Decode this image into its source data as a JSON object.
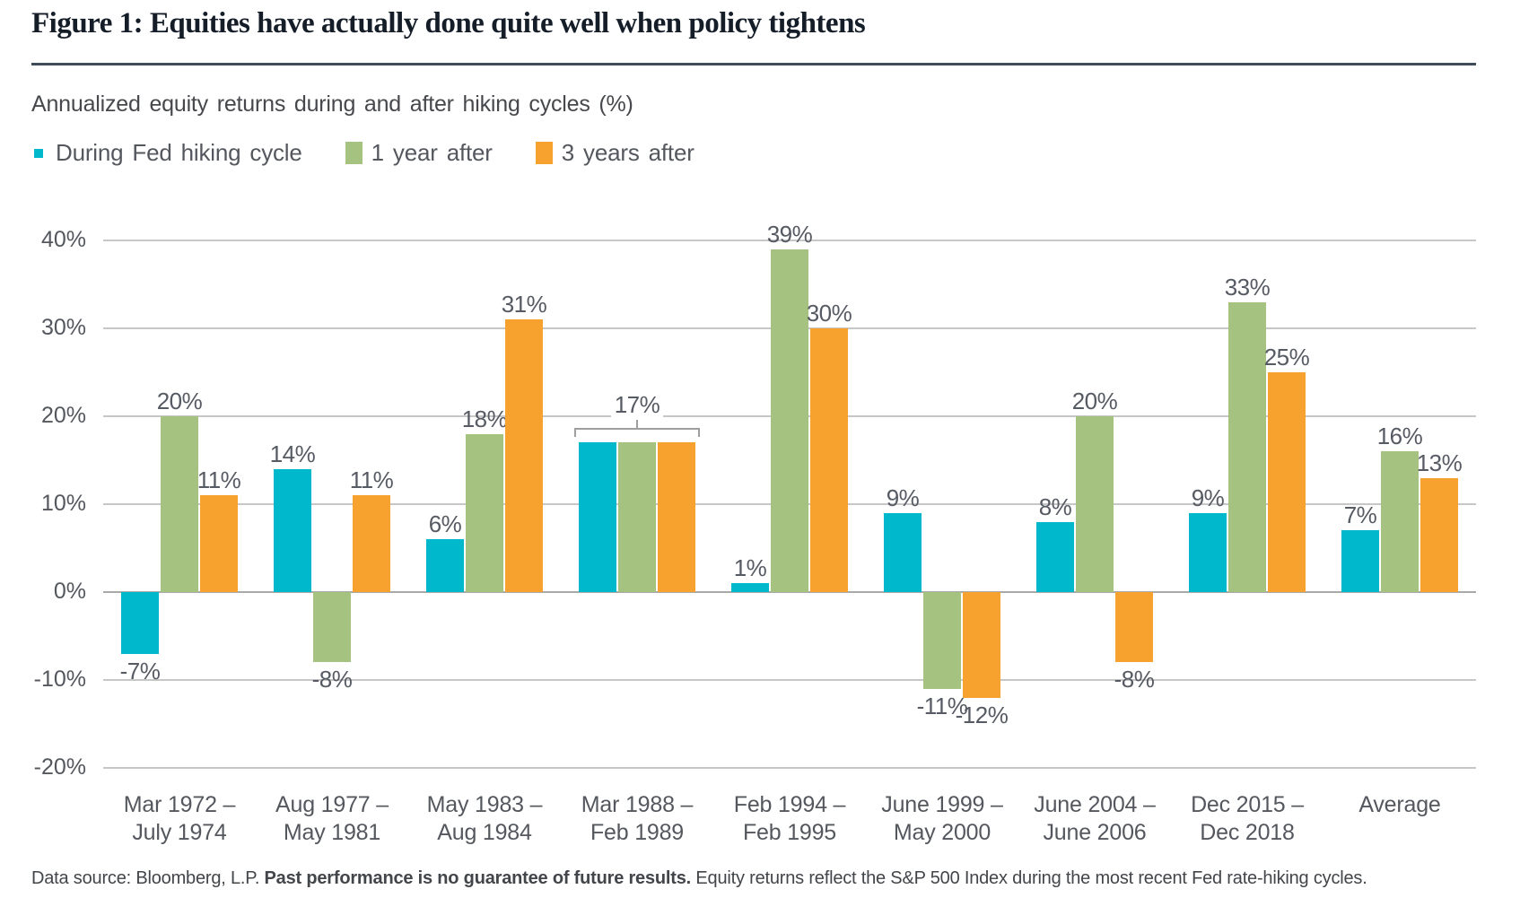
{
  "header": {
    "title": "Figure 1: Equities have actually done quite well when policy tightens",
    "subtitle": "Annualized equity returns during and after hiking cycles (%)"
  },
  "legend": [
    {
      "label": "During Fed hiking cycle",
      "color": "#00b8cc",
      "marker": "small-square"
    },
    {
      "label": "1 year after",
      "color": "#a6c280",
      "marker": "square"
    },
    {
      "label": "3 years after",
      "color": "#f7a12f",
      "marker": "square"
    }
  ],
  "footer": {
    "prefix": "Data source: Bloomberg, L.P. ",
    "bold": "Past performance is no guarantee of future results.",
    "suffix": " Equity returns reflect the S&P 500 Index during the most recent Fed rate-hiking cycles."
  },
  "chart_data": {
    "type": "bar",
    "title": "Annualized equity returns during and after hiking cycles (%)",
    "categories": [
      [
        "Mar 1972 –",
        "July 1974"
      ],
      [
        "Aug 1977 –",
        "May 1981"
      ],
      [
        "May 1983 –",
        "Aug 1984"
      ],
      [
        "Mar 1988 –",
        "Feb 1989"
      ],
      [
        "Feb 1994 –",
        "Feb 1995"
      ],
      [
        "June 1999 –",
        "May 2000"
      ],
      [
        "June 2004 –",
        "June 2006"
      ],
      [
        "Dec 2015 –",
        "Dec 2018"
      ],
      [
        "Average"
      ]
    ],
    "series": [
      {
        "name": "During Fed hiking cycle",
        "color": "#00b8cc",
        "values": [
          -7,
          14,
          6,
          17,
          1,
          9,
          8,
          9,
          7
        ]
      },
      {
        "name": "1 year after",
        "color": "#a6c280",
        "values": [
          20,
          -8,
          18,
          17,
          39,
          -11,
          20,
          33,
          16
        ]
      },
      {
        "name": "3 years after",
        "color": "#f7a12f",
        "values": [
          11,
          11,
          31,
          17,
          30,
          -12,
          -8,
          25,
          13
        ]
      }
    ],
    "data_label_format": "{v}%",
    "annotation": {
      "group_index": 3,
      "label": "17%",
      "note": "single bracketed label over all three bars"
    },
    "ylim": [
      -20,
      40
    ],
    "ytick_step": 10,
    "yticks": [
      "40%",
      "30%",
      "20%",
      "10%",
      "0%",
      "-10%",
      "-20%"
    ],
    "grid": true,
    "legend_position": "top-left"
  }
}
